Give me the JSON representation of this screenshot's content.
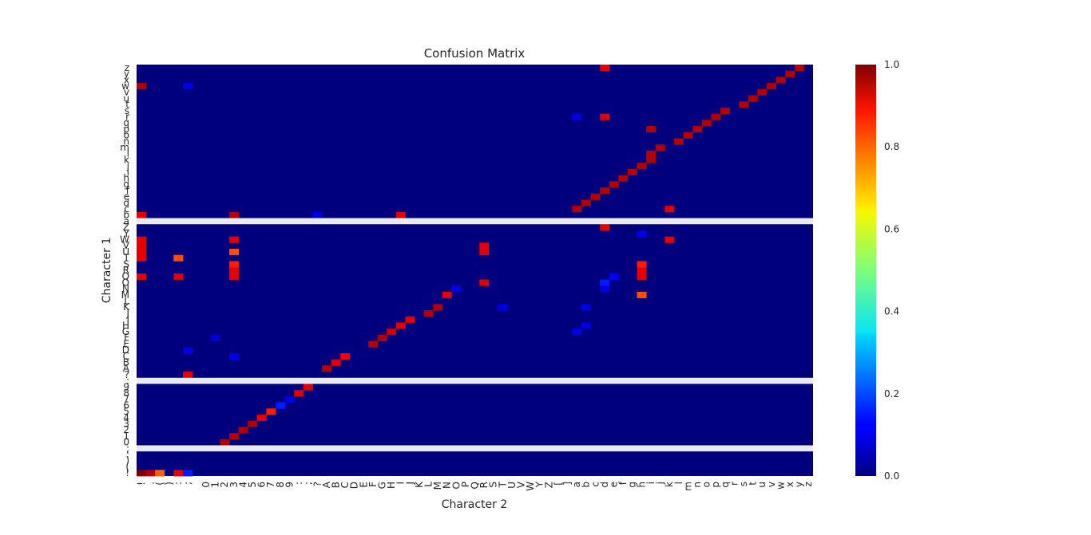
{
  "chart_data": {
    "type": "heatmap",
    "title": "Confusion Matrix",
    "xlabel": "Character 2",
    "ylabel": "Character 1",
    "colormap": "jet",
    "value_range": [
      0,
      1
    ],
    "background": "#00007f",
    "gap_color": "#eaeaf2",
    "x_categories": [
      "!",
      ".",
      "(",
      ")",
      ":",
      ";",
      " ",
      "0",
      "1",
      "2",
      "3",
      "4",
      "5",
      "6",
      "7",
      "8",
      "9",
      ":",
      ";",
      "?",
      "A",
      "B",
      "C",
      "D",
      "E",
      "F",
      "G",
      "H",
      "I",
      "J",
      "K",
      "L",
      "M",
      "N",
      "O",
      "P",
      "Q",
      "R",
      "S",
      "T",
      "U",
      "V",
      "W",
      "Y",
      "Z",
      "[",
      "]",
      "a",
      "b",
      "c",
      "d",
      "e",
      "f",
      "g",
      "h",
      "i",
      "j",
      "k",
      "l",
      "m",
      "n",
      "o",
      "p",
      "q",
      "r",
      "s",
      "t",
      "u",
      "v",
      "w",
      "x",
      "y",
      "z"
    ],
    "y_categories_bottom_to_top": [
      "!",
      "(",
      ")",
      ":",
      ";",
      "0",
      "1",
      "2",
      "3",
      "4",
      "5",
      "6",
      "7",
      "8",
      "9",
      ":",
      "?",
      "A",
      "B",
      "C",
      "D",
      "E",
      "F",
      "G",
      "H",
      "I",
      "J",
      "K",
      "L",
      "M",
      "N",
      "O",
      "Q",
      "R",
      "S",
      "T",
      "U",
      "V",
      "W",
      "Y",
      "Z",
      "a",
      "b",
      "c",
      "d",
      "e",
      "f",
      "g",
      "h",
      "i",
      "j",
      "k",
      "l",
      "m",
      "n",
      "o",
      "p",
      "q",
      "r",
      "s",
      "t",
      "u",
      "v",
      "w",
      "x",
      "y",
      "z"
    ],
    "y_gap_rows": [
      4,
      15,
      41
    ],
    "cells": [
      [
        0,
        0,
        1.0
      ],
      [
        0,
        1,
        0.95
      ],
      [
        0,
        2,
        0.78
      ],
      [
        0,
        4,
        0.9
      ],
      [
        0,
        5,
        0.15
      ],
      [
        5,
        9,
        0.95
      ],
      [
        6,
        10,
        0.95
      ],
      [
        7,
        11,
        0.95
      ],
      [
        8,
        12,
        0.95
      ],
      [
        9,
        13,
        0.9
      ],
      [
        10,
        14,
        0.85
      ],
      [
        11,
        15,
        0.15
      ],
      [
        12,
        16,
        0.1
      ],
      [
        13,
        17,
        0.9
      ],
      [
        14,
        18,
        0.9
      ],
      [
        16,
        5,
        0.9
      ],
      [
        17,
        20,
        0.95
      ],
      [
        18,
        21,
        0.9
      ],
      [
        19,
        22,
        0.88
      ],
      [
        21,
        25,
        0.95
      ],
      [
        22,
        26,
        0.95
      ],
      [
        23,
        27,
        0.92
      ],
      [
        24,
        28,
        0.9
      ],
      [
        25,
        29,
        0.9
      ],
      [
        26,
        31,
        0.95
      ],
      [
        27,
        32,
        0.95
      ],
      [
        29,
        33,
        0.9
      ],
      [
        29,
        54,
        0.8
      ],
      [
        30,
        34,
        0.1
      ],
      [
        31,
        37,
        0.9
      ],
      [
        32,
        0,
        0.9
      ],
      [
        32,
        4,
        0.9
      ],
      [
        32,
        10,
        0.9
      ],
      [
        32,
        54,
        0.9
      ],
      [
        33,
        10,
        0.9
      ],
      [
        33,
        54,
        0.9
      ],
      [
        34,
        10,
        0.85
      ],
      [
        34,
        54,
        0.85
      ],
      [
        35,
        0,
        0.9
      ],
      [
        35,
        4,
        0.8
      ],
      [
        36,
        0,
        0.9
      ],
      [
        36,
        10,
        0.8
      ],
      [
        37,
        0,
        0.9
      ],
      [
        38,
        0,
        0.9
      ],
      [
        19,
        10,
        0.1
      ],
      [
        20,
        5,
        0.1
      ],
      [
        22,
        8,
        0.08
      ],
      [
        23,
        47,
        0.1
      ],
      [
        24,
        48,
        0.1
      ],
      [
        27,
        48,
        0.1
      ],
      [
        27,
        39,
        0.1
      ],
      [
        30,
        50,
        0.1
      ],
      [
        31,
        50,
        0.15
      ],
      [
        32,
        51,
        0.12
      ],
      [
        36,
        37,
        0.9
      ],
      [
        37,
        37,
        0.9
      ],
      [
        38,
        10,
        0.9
      ],
      [
        38,
        57,
        0.9
      ],
      [
        39,
        54,
        0.1
      ],
      [
        40,
        50,
        0.9
      ],
      [
        42,
        0,
        0.9
      ],
      [
        42,
        19,
        0.1
      ],
      [
        42,
        10,
        0.95
      ],
      [
        42,
        28,
        0.9
      ],
      [
        43,
        47,
        0.95
      ],
      [
        44,
        48,
        0.95
      ],
      [
        45,
        49,
        0.95
      ],
      [
        46,
        50,
        0.95
      ],
      [
        47,
        51,
        0.95
      ],
      [
        48,
        52,
        0.95
      ],
      [
        49,
        53,
        0.95
      ],
      [
        50,
        54,
        0.95
      ],
      [
        51,
        55,
        0.95
      ],
      [
        52,
        55,
        0.95
      ],
      [
        53,
        56,
        0.95
      ],
      [
        54,
        58,
        0.95
      ],
      [
        55,
        59,
        0.95
      ],
      [
        56,
        60,
        0.95
      ],
      [
        57,
        61,
        0.95
      ],
      [
        58,
        62,
        0.95
      ],
      [
        59,
        63,
        0.95
      ],
      [
        60,
        65,
        0.95
      ],
      [
        61,
        66,
        0.95
      ],
      [
        62,
        67,
        0.95
      ],
      [
        63,
        68,
        0.95
      ],
      [
        64,
        69,
        0.95
      ],
      [
        65,
        70,
        0.95
      ],
      [
        66,
        71,
        0.95
      ],
      [
        43,
        57,
        0.9
      ],
      [
        58,
        47,
        0.1
      ],
      [
        58,
        50,
        0.9
      ],
      [
        56,
        55,
        0.95
      ],
      [
        63,
        0,
        0.95
      ],
      [
        63,
        5,
        0.1
      ],
      [
        66,
        50,
        0.9
      ]
    ],
    "colorbar_ticks": [
      "0.0",
      "0.2",
      "0.4",
      "0.6",
      "0.8",
      "1.0"
    ]
  }
}
